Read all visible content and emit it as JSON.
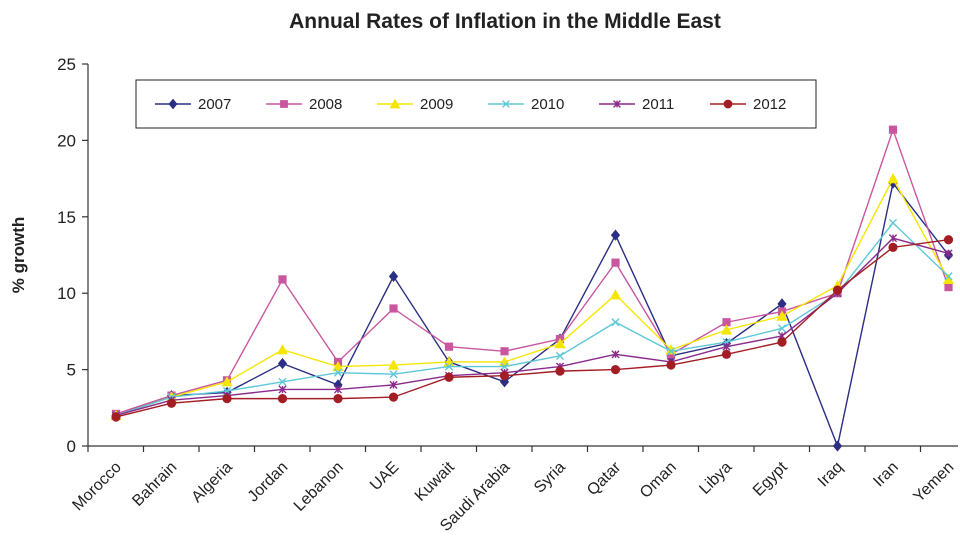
{
  "chart_data": {
    "type": "line",
    "title": "Annual Rates of Inflation in the Middle East",
    "xlabel": "",
    "ylabel": "% growth",
    "ylim": [
      0,
      25
    ],
    "yticks": [
      0,
      5,
      10,
      15,
      20,
      25
    ],
    "grid": false,
    "legend_position": "top",
    "categories": [
      "Morocco",
      "Bahrain",
      "Algeria",
      "Jordan",
      "Lebanon",
      "UAE",
      "Kuwait",
      "Saudi Arabia",
      "Syria",
      "Qatar",
      "Oman",
      "Libya",
      "Egypt",
      "Iraq",
      "Iran",
      "Yemen"
    ],
    "series": [
      {
        "name": "2007",
        "color": "#2b2e83",
        "marker": "diamond",
        "values": [
          2.0,
          3.3,
          3.5,
          5.4,
          4.0,
          11.1,
          5.5,
          4.2,
          7.0,
          13.8,
          5.9,
          6.7,
          9.3,
          0.0,
          17.2,
          12.5
        ]
      },
      {
        "name": "2008",
        "color": "#c8579f",
        "marker": "square",
        "values": [
          2.1,
          3.3,
          4.3,
          10.9,
          5.5,
          9.0,
          6.5,
          6.2,
          7.0,
          12.0,
          6.0,
          8.1,
          8.8,
          10.0,
          20.7,
          10.4
        ]
      },
      {
        "name": "2009",
        "color": "#f5e600",
        "marker": "triangle",
        "values": [
          2.0,
          3.2,
          4.2,
          6.3,
          5.2,
          5.3,
          5.5,
          5.5,
          6.7,
          9.9,
          6.3,
          7.6,
          8.5,
          10.5,
          17.5,
          10.9
        ]
      },
      {
        "name": "2010",
        "color": "#5fc8d8",
        "marker": "x",
        "values": [
          2.0,
          3.2,
          3.6,
          4.2,
          4.8,
          4.7,
          5.2,
          5.2,
          5.9,
          8.1,
          6.2,
          6.8,
          7.7,
          10.0,
          14.6,
          11.1
        ]
      },
      {
        "name": "2011",
        "color": "#8a2a8c",
        "marker": "star",
        "values": [
          2.0,
          3.0,
          3.3,
          3.7,
          3.7,
          4.0,
          4.6,
          4.8,
          5.2,
          6.0,
          5.5,
          6.5,
          7.2,
          10.0,
          13.6,
          12.6
        ]
      },
      {
        "name": "2012",
        "color": "#a31d24",
        "marker": "circle",
        "values": [
          1.9,
          2.8,
          3.1,
          3.1,
          3.1,
          3.2,
          4.5,
          4.6,
          4.9,
          5.0,
          5.3,
          6.0,
          6.8,
          10.2,
          13.0,
          13.5
        ]
      }
    ]
  }
}
